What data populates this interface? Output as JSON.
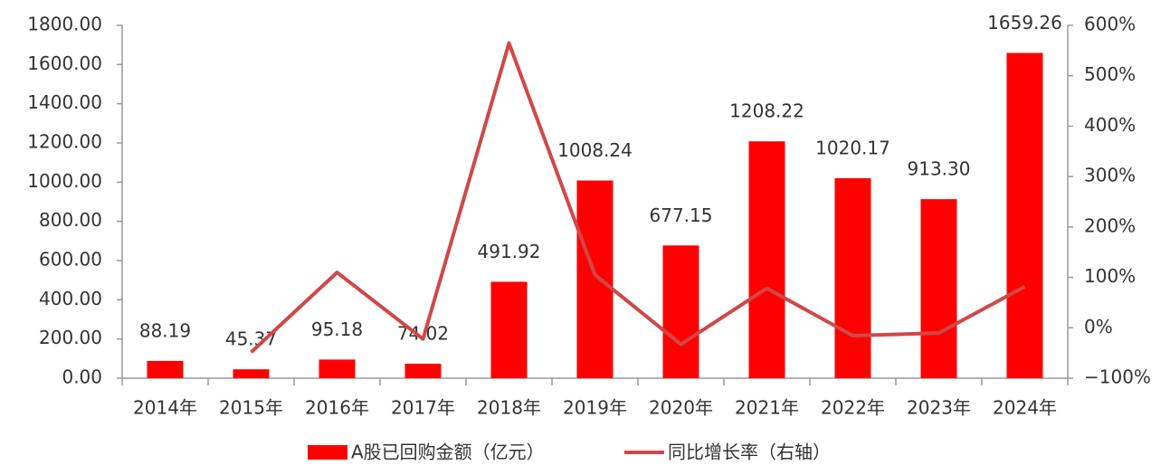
{
  "chart_data": {
    "type": "bar-line",
    "categories": [
      "2014年",
      "2015年",
      "2016年",
      "2017年",
      "2018年",
      "2019年",
      "2020年",
      "2021年",
      "2022年",
      "2023年",
      "2024年"
    ],
    "series": [
      {
        "name": "A股已回购金额（亿元）",
        "type": "bar",
        "color": "#ff0000",
        "values": [
          88.19,
          45.37,
          95.18,
          74.02,
          491.92,
          1008.24,
          677.15,
          1208.22,
          1020.17,
          913.3,
          1659.26
        ],
        "value_labels": [
          "88.19",
          "45.37",
          "95.18",
          "74.02",
          "491.92",
          "1008.24",
          "677.15",
          "1208.22",
          "1020.17",
          "913.30",
          "1659.26"
        ]
      },
      {
        "name": "同比增长率（右轴）",
        "type": "line",
        "color": "#d04848",
        "axis": "y2",
        "values": [
          null,
          -48.6,
          109.8,
          -22.2,
          564.6,
          105.0,
          -32.8,
          78.4,
          -15.6,
          -10.5,
          81.7
        ]
      }
    ],
    "ylim": [
      0,
      1800
    ],
    "yticks": [
      {
        "value": 0,
        "label": "0.00"
      },
      {
        "value": 200,
        "label": "200.00"
      },
      {
        "value": 400,
        "label": "400.00"
      },
      {
        "value": 600,
        "label": "600.00"
      },
      {
        "value": 800,
        "label": "800.00"
      },
      {
        "value": 1000,
        "label": "1000.00"
      },
      {
        "value": 1200,
        "label": "1200.00"
      },
      {
        "value": 1400,
        "label": "1400.00"
      },
      {
        "value": 1600,
        "label": "1600.00"
      },
      {
        "value": 1800,
        "label": "1800.00"
      }
    ],
    "y2lim": [
      -100,
      600
    ],
    "y2ticks": [
      {
        "value": -100,
        "label": "−100%"
      },
      {
        "value": 0,
        "label": "0%"
      },
      {
        "value": 100,
        "label": "100%"
      },
      {
        "value": 200,
        "label": "200%"
      },
      {
        "value": 300,
        "label": "300%"
      },
      {
        "value": 400,
        "label": "400%"
      },
      {
        "value": 500,
        "label": "500%"
      },
      {
        "value": 600,
        "label": "600%"
      }
    ]
  }
}
